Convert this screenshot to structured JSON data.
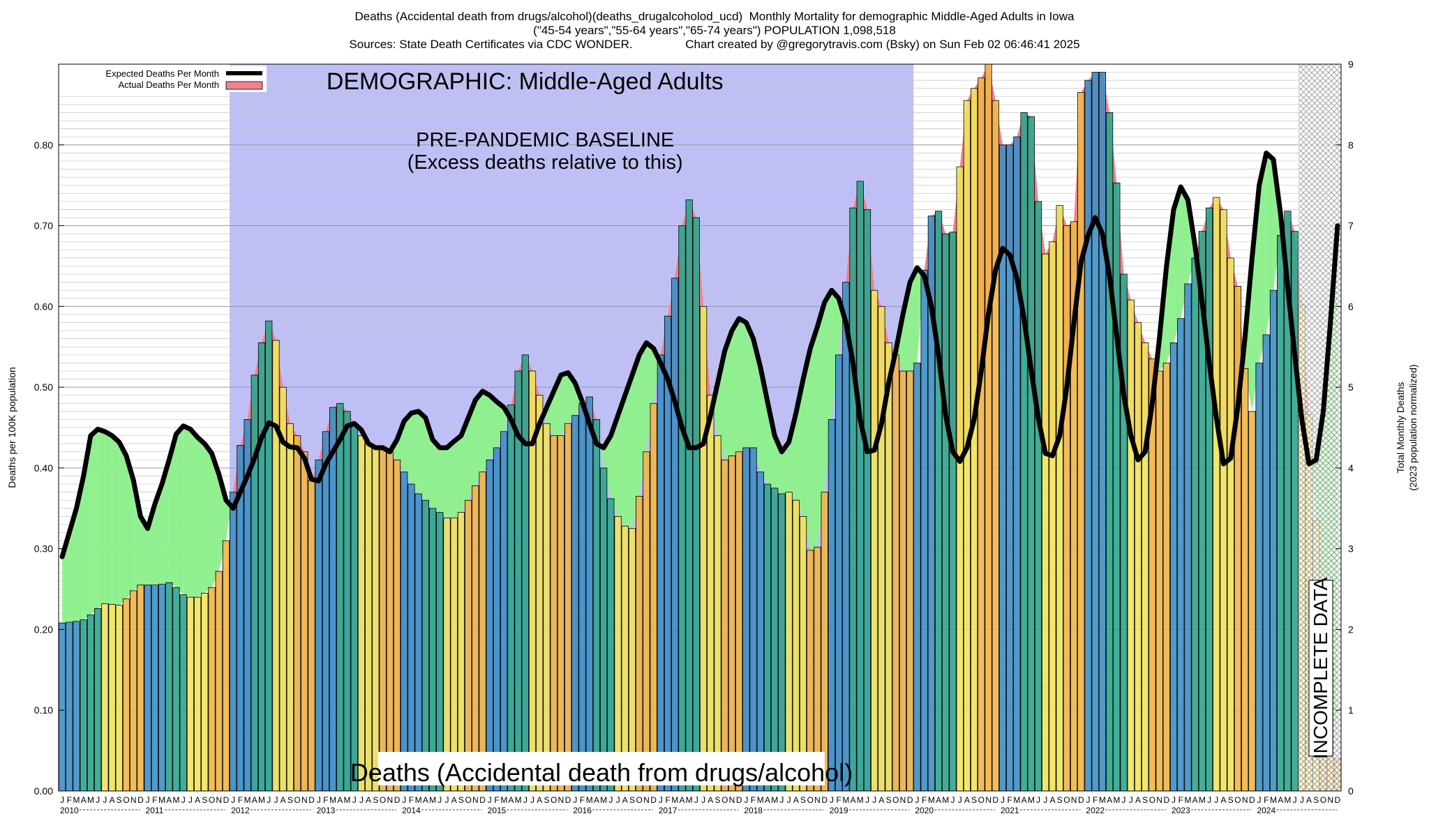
{
  "header": {
    "line1": "Deaths (Accidental death from drugs/alcohol)(deaths_drugalcoholod_ucd)  Monthly Mortality for demographic Middle-Aged Adults in Iowa",
    "line2": "(\"45-54 years\",\"55-64 years\",\"65-74 years\") POPULATION 1,098,518",
    "line3": "Sources: State Death Certificates via CDC WONDER.                Chart created by @gregorytravis.com (Bsky) on Sun Feb 02 06:46:41 2025"
  },
  "colors": {
    "baseline_region": "#bfbff7",
    "excess_fill": "#f08090",
    "deficit_fill": "#90f090",
    "expected_line": "#000000",
    "bar_winter": "#3e8fc6",
    "bar_spring": "#2fa58d",
    "bar_summer": "#f1e35c",
    "bar_fall": "#f1b548",
    "incomplete_hatch": "#888888"
  },
  "chart_data": {
    "type": "bar",
    "annotations": {
      "demographic": "DEMOGRAPHIC: Middle-Aged Adults",
      "baseline_1": "PRE-PANDEMIC BASELINE",
      "baseline_2": "(Excess deaths relative to this)",
      "cause": "Deaths (Accidental death from drugs/alcohol)",
      "incomplete": "INCOMPLETE DATA"
    },
    "legend": {
      "position": "top-left",
      "entries": [
        "Expected Deaths Per Month",
        "Actual Deaths Per Month"
      ]
    },
    "ylabel_left": "Deaths per 100K population",
    "ylabel_right_1": "Total Monthly Deaths",
    "ylabel_right_2": "(2023 population normalized)",
    "ylim_left": [
      0,
      0.9
    ],
    "ylim_right": [
      0,
      9
    ],
    "yticks_left": [
      "0.00",
      "0.10",
      "0.20",
      "0.30",
      "0.40",
      "0.50",
      "0.60",
      "0.70",
      "0.80"
    ],
    "yticks_right": [
      "0",
      "1",
      "2",
      "3",
      "4",
      "5",
      "6",
      "7",
      "8",
      "9"
    ],
    "month_letters": [
      "J",
      "F",
      "M",
      "A",
      "M",
      "J",
      "J",
      "A",
      "S",
      "O",
      "N",
      "D"
    ],
    "years": [
      "2010",
      "2011",
      "2012",
      "2013",
      "2014",
      "2015",
      "2016",
      "2017",
      "2018",
      "2019",
      "2020",
      "2021",
      "2022",
      "2023",
      "2024"
    ],
    "baseline_period": [
      "2012-01",
      "2019-12"
    ],
    "incomplete_period": [
      "2024-07",
      "2024-12"
    ],
    "start": "2010-01",
    "actual": [
      0.208,
      0.209,
      0.21,
      0.212,
      0.218,
      0.226,
      0.232,
      0.231,
      0.23,
      0.238,
      0.248,
      0.255,
      0.255,
      0.255,
      0.256,
      0.258,
      0.252,
      0.243,
      0.24,
      0.24,
      0.245,
      0.252,
      0.272,
      0.31,
      0.37,
      0.428,
      0.46,
      0.515,
      0.555,
      0.582,
      0.558,
      0.5,
      0.455,
      0.44,
      0.42,
      0.385,
      0.41,
      0.445,
      0.475,
      0.48,
      0.47,
      0.455,
      0.44,
      0.43,
      0.425,
      0.425,
      0.42,
      0.41,
      0.395,
      0.38,
      0.368,
      0.36,
      0.35,
      0.345,
      0.338,
      0.338,
      0.345,
      0.36,
      0.378,
      0.395,
      0.41,
      0.425,
      0.445,
      0.478,
      0.52,
      0.54,
      0.52,
      0.49,
      0.455,
      0.44,
      0.44,
      0.455,
      0.465,
      0.48,
      0.488,
      0.46,
      0.4,
      0.362,
      0.34,
      0.328,
      0.325,
      0.365,
      0.42,
      0.48,
      0.54,
      0.588,
      0.635,
      0.7,
      0.732,
      0.71,
      0.6,
      0.49,
      0.44,
      0.41,
      0.415,
      0.42,
      0.425,
      0.425,
      0.395,
      0.38,
      0.375,
      0.368,
      0.37,
      0.36,
      0.34,
      0.298,
      0.302,
      0.37,
      0.46,
      0.54,
      0.63,
      0.722,
      0.755,
      0.72,
      0.62,
      0.6,
      0.555,
      0.54,
      0.52,
      0.52,
      0.53,
      0.645,
      0.712,
      0.718,
      0.69,
      0.692,
      0.773,
      0.855,
      0.87,
      0.883,
      0.9,
      0.855,
      0.8,
      0.8,
      0.81,
      0.84,
      0.835,
      0.73,
      0.665,
      0.68,
      0.725,
      0.7,
      0.705,
      0.865,
      0.88,
      0.89,
      0.89,
      0.84,
      0.753,
      0.64,
      0.608,
      0.58,
      0.555,
      0.535,
      0.52,
      0.53,
      0.555,
      0.585,
      0.628,
      0.66,
      0.693,
      0.722,
      0.735,
      0.72,
      0.66,
      0.625,
      0.523,
      0.47,
      0.53,
      0.565,
      0.62,
      0.688,
      0.718,
      0.693,
      0.602,
      0.466,
      0.335,
      0.21,
      0.16,
      0.04
    ],
    "expected": [
      0.29,
      0.32,
      0.35,
      0.39,
      0.44,
      0.448,
      0.445,
      0.44,
      0.432,
      0.415,
      0.385,
      0.34,
      0.325,
      0.355,
      0.38,
      0.41,
      0.442,
      0.452,
      0.448,
      0.438,
      0.43,
      0.418,
      0.392,
      0.36,
      0.35,
      0.37,
      0.39,
      0.412,
      0.438,
      0.456,
      0.452,
      0.432,
      0.426,
      0.425,
      0.412,
      0.386,
      0.384,
      0.405,
      0.42,
      0.435,
      0.452,
      0.455,
      0.447,
      0.43,
      0.425,
      0.425,
      0.42,
      0.435,
      0.458,
      0.468,
      0.47,
      0.462,
      0.435,
      0.425,
      0.425,
      0.433,
      0.44,
      0.462,
      0.484,
      0.495,
      0.49,
      0.482,
      0.475,
      0.46,
      0.44,
      0.43,
      0.43,
      0.455,
      0.475,
      0.495,
      0.515,
      0.518,
      0.505,
      0.482,
      0.455,
      0.43,
      0.425,
      0.44,
      0.465,
      0.49,
      0.515,
      0.54,
      0.555,
      0.548,
      0.53,
      0.51,
      0.482,
      0.45,
      0.425,
      0.425,
      0.43,
      0.465,
      0.505,
      0.545,
      0.57,
      0.585,
      0.58,
      0.56,
      0.525,
      0.482,
      0.44,
      0.42,
      0.432,
      0.468,
      0.51,
      0.548,
      0.575,
      0.605,
      0.62,
      0.61,
      0.58,
      0.53,
      0.46,
      0.42,
      0.422,
      0.455,
      0.505,
      0.545,
      0.59,
      0.63,
      0.648,
      0.638,
      0.6,
      0.54,
      0.465,
      0.42,
      0.408,
      0.425,
      0.46,
      0.52,
      0.59,
      0.645,
      0.672,
      0.664,
      0.635,
      0.585,
      0.522,
      0.462,
      0.418,
      0.415,
      0.44,
      0.5,
      0.58,
      0.655,
      0.688,
      0.71,
      0.69,
      0.638,
      0.565,
      0.49,
      0.44,
      0.41,
      0.42,
      0.48,
      0.56,
      0.65,
      0.72,
      0.748,
      0.732,
      0.675,
      0.605,
      0.53,
      0.462,
      0.405,
      0.412,
      0.475,
      0.56,
      0.66,
      0.75,
      0.79,
      0.782,
      0.715,
      0.625,
      0.54,
      0.46,
      0.405,
      0.41,
      0.47,
      0.58,
      0.7
    ]
  }
}
